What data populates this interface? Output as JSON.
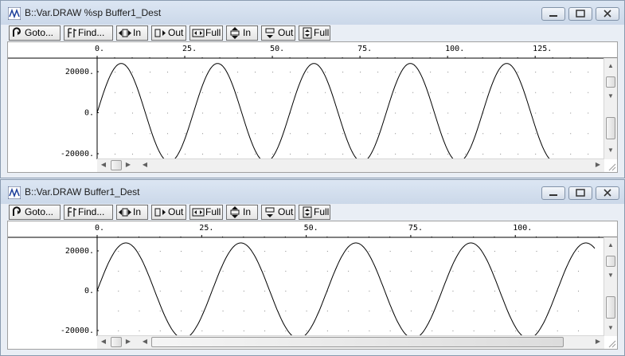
{
  "windows": [
    {
      "title": "B::Var.DRAW %sp Buffer1_Dest",
      "toolbar": [
        "Goto...",
        "Find...",
        "In",
        "Out",
        "Full",
        "In",
        "Out",
        "Full"
      ],
      "x_ticks": [
        "0.",
        "25.",
        "50.",
        "75.",
        "100.",
        "125."
      ],
      "y_ticks": [
        "20000.",
        "0.",
        "-20000."
      ],
      "samples": 130,
      "x_max_visible": 142,
      "period": 27.5,
      "amplitude": 24000
    },
    {
      "title": "B::Var.DRAW Buffer1_Dest",
      "toolbar": [
        "Goto...",
        "Find...",
        "In",
        "Out",
        "Full",
        "In",
        "Out",
        "Full"
      ],
      "x_ticks": [
        "0.",
        "25.",
        "50.",
        "75.",
        "100."
      ],
      "y_ticks": [
        "20000.",
        "0.",
        "-20000."
      ],
      "samples": 130,
      "x_max_visible": 119,
      "period": 27.5,
      "amplitude": 24000
    }
  ],
  "chart_data": [
    {
      "type": "line",
      "title": "B::Var.DRAW %sp Buffer1_Dest",
      "xlabel": "",
      "ylabel": "",
      "xlim": [
        0,
        142
      ],
      "ylim": [
        -20000,
        20000
      ],
      "x_ticks": [
        0,
        25,
        50,
        75,
        100,
        125
      ],
      "y_ticks": [
        20000,
        0,
        -20000
      ],
      "series": [
        {
          "function": "sine",
          "amplitude": 24000,
          "period": 27.5,
          "x_range": [
            0,
            129
          ]
        }
      ],
      "grid": "dotted"
    },
    {
      "type": "line",
      "title": "B::Var.DRAW Buffer1_Dest",
      "xlabel": "",
      "ylabel": "",
      "xlim": [
        0,
        119
      ],
      "ylim": [
        -20000,
        20000
      ],
      "x_ticks": [
        0,
        25,
        50,
        75,
        100
      ],
      "y_ticks": [
        20000,
        0,
        -20000
      ],
      "series": [
        {
          "function": "sine",
          "amplitude": 24000,
          "period": 27.5,
          "x_range": [
            0,
            119
          ]
        }
      ],
      "grid": "dotted"
    }
  ],
  "icons": {
    "title": "trace32-var-draw-icon",
    "caption": [
      "minimize-icon",
      "maximize-icon",
      "close-icon"
    ],
    "toolbar": [
      "goto-icon",
      "find-icon",
      "zoom-x-in-icon",
      "zoom-x-out-icon",
      "full-x-icon",
      "zoom-y-in-icon",
      "zoom-y-out-icon",
      "full-y-icon"
    ]
  }
}
